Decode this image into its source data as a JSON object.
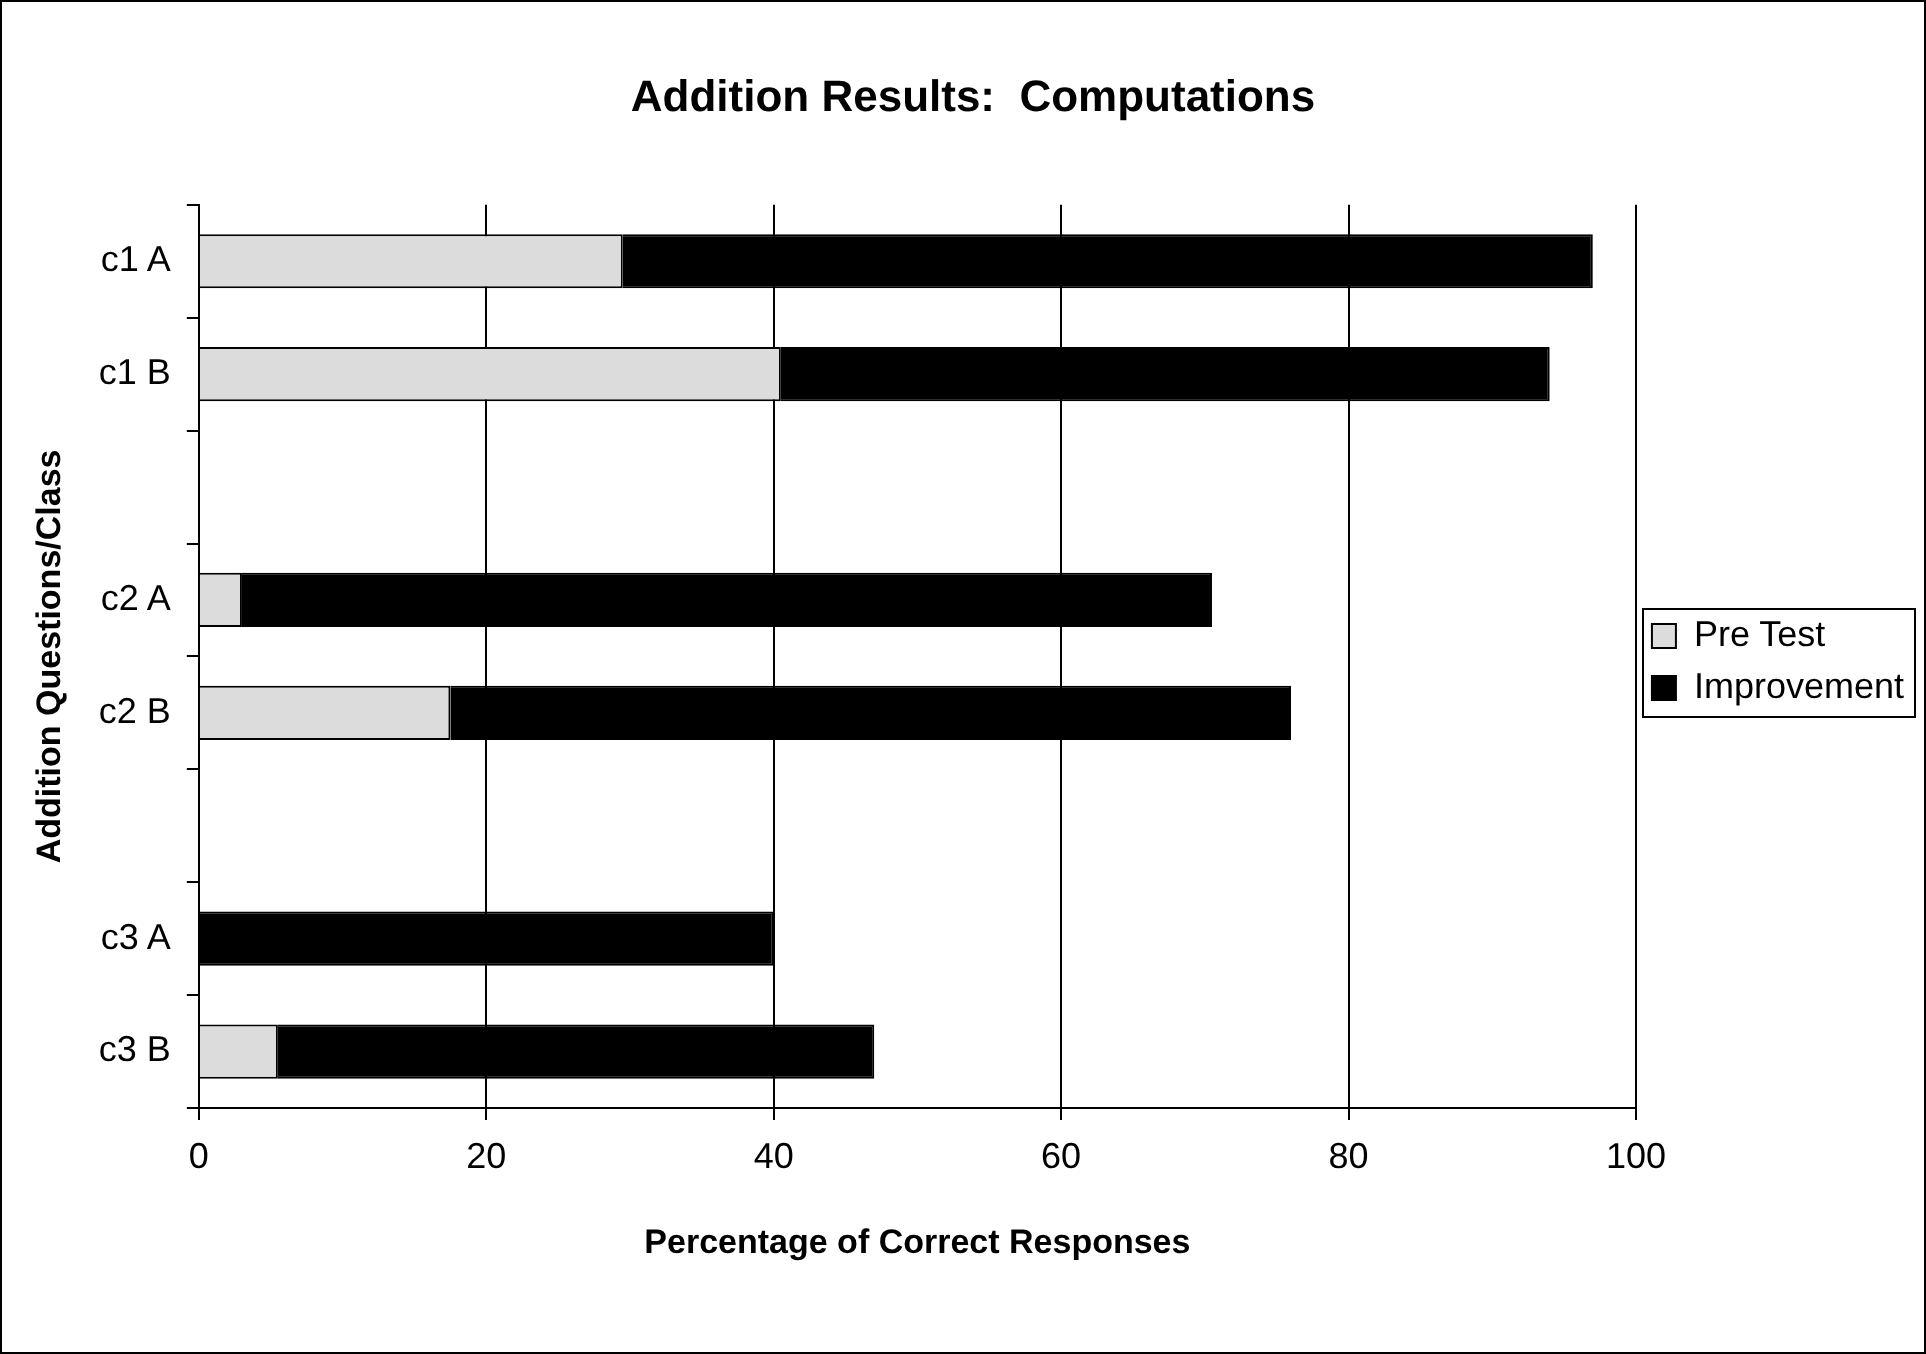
{
  "chart_data": {
    "type": "bar",
    "orientation": "horizontal",
    "stacked": true,
    "title": "Addition Results:  Computations",
    "xlabel": "Percentage of Correct Responses",
    "ylabel": "Addition Questions/Class",
    "categories": [
      "c1 A",
      "c1 B",
      null,
      "c2 A",
      "c2 B",
      null,
      "c3 A",
      "c3 B"
    ],
    "series": [
      {
        "name": "Pre Test",
        "color": "#dcdcdc",
        "values": [
          29.5,
          40.5,
          null,
          3,
          17.5,
          null,
          0,
          5.5
        ]
      },
      {
        "name": "Improvement",
        "color": "#000000",
        "values": [
          67.5,
          53.5,
          null,
          67.5,
          58.5,
          null,
          40,
          41.5
        ]
      }
    ],
    "xlim": [
      0,
      100
    ],
    "xticks": [
      0,
      20,
      40,
      60,
      80,
      100
    ],
    "grid": "x",
    "legend": "right"
  }
}
